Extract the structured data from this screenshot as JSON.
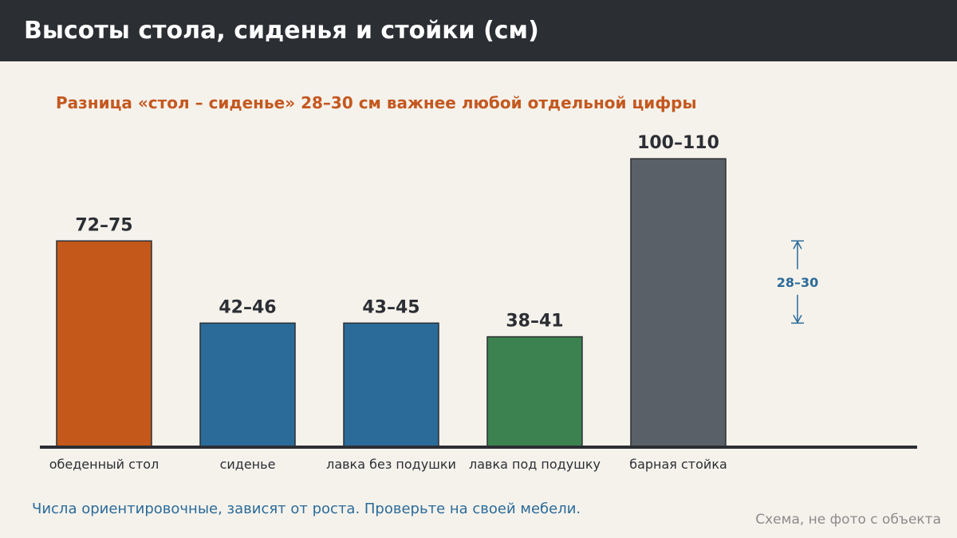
{
  "header": {
    "title": "Высоты стола, сиденья и стойки (см)"
  },
  "chart_data": {
    "type": "bar",
    "subtitle": "Разница «стол – сиденье» 28–30 см важнее любой отдельной цифры",
    "categories": [
      "обеденный стол",
      "сиденье",
      "лавка без подушки",
      "лавка под подушку",
      "барная стойка"
    ],
    "values": [
      75,
      45,
      45,
      40,
      105
    ],
    "value_labels": [
      "72–75",
      "42–46",
      "43–45",
      "38–41",
      "100–110"
    ],
    "colors": [
      "#c4581a",
      "#2b6b99",
      "#2b6b99",
      "#3c8250",
      "#5a6068"
    ],
    "ylim": [
      0,
      110
    ],
    "grid": false,
    "annotation": {
      "label": "28–30",
      "from": 75,
      "to": 45,
      "color": "#2b6b99"
    }
  },
  "footer": {
    "note": "Числа ориентировочные, зависят от роста. Проверьте на своей мебели.",
    "watermark": "Схема, не фото с объекта"
  }
}
